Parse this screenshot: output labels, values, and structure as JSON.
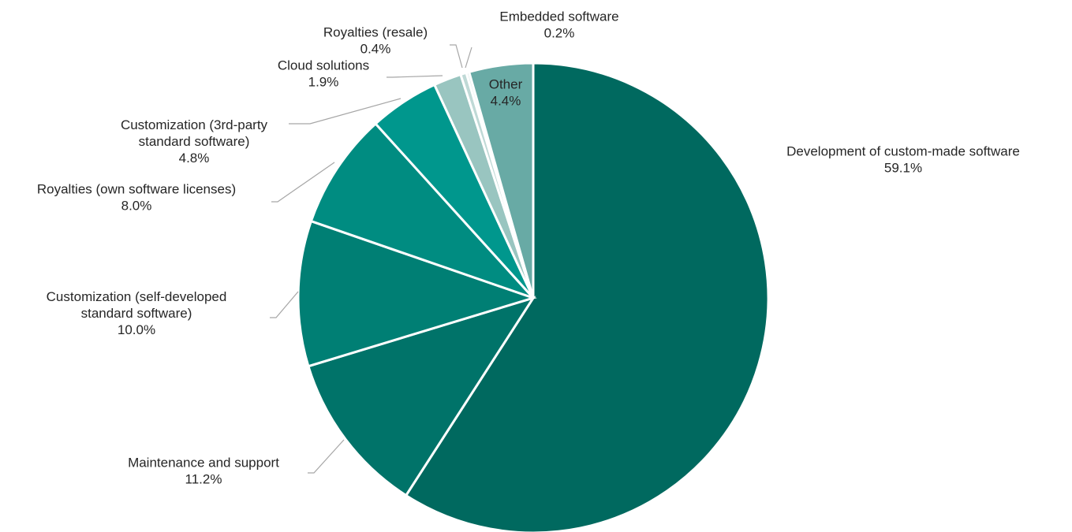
{
  "chart_data": {
    "type": "pie",
    "start_angle_deg": 0,
    "direction": "clockwise",
    "slices": [
      {
        "label_lines": [
          "Development of custom-made software"
        ],
        "value": 59.1,
        "value_label": "59.1%",
        "color": "#00695f"
      },
      {
        "label_lines": [
          "Maintenance and support"
        ],
        "value": 11.2,
        "value_label": "11.2%",
        "color": "#007369"
      },
      {
        "label_lines": [
          "Customization (self-developed",
          "standard software)"
        ],
        "value": 10.0,
        "value_label": "10.0%",
        "color": "#007f74"
      },
      {
        "label_lines": [
          "Royalties (own software licenses)"
        ],
        "value": 8.0,
        "value_label": "8.0%",
        "color": "#008c81"
      },
      {
        "label_lines": [
          "Customization (3rd-party",
          "standard software)"
        ],
        "value": 4.8,
        "value_label": "4.8%",
        "color": "#00978d"
      },
      {
        "label_lines": [
          "Cloud solutions"
        ],
        "value": 1.9,
        "value_label": "1.9%",
        "color": "#99c5c0"
      },
      {
        "label_lines": [
          "Royalties (resale)"
        ],
        "value": 0.4,
        "value_label": "0.4%",
        "color": "#bfd9d6"
      },
      {
        "label_lines": [
          "Embedded software"
        ],
        "value": 0.2,
        "value_label": "0.2%",
        "color": "#d9e9e7"
      },
      {
        "label_lines": [
          "Other"
        ],
        "value": 4.4,
        "value_label": "4.4%",
        "color": "#68aaa5"
      }
    ]
  }
}
